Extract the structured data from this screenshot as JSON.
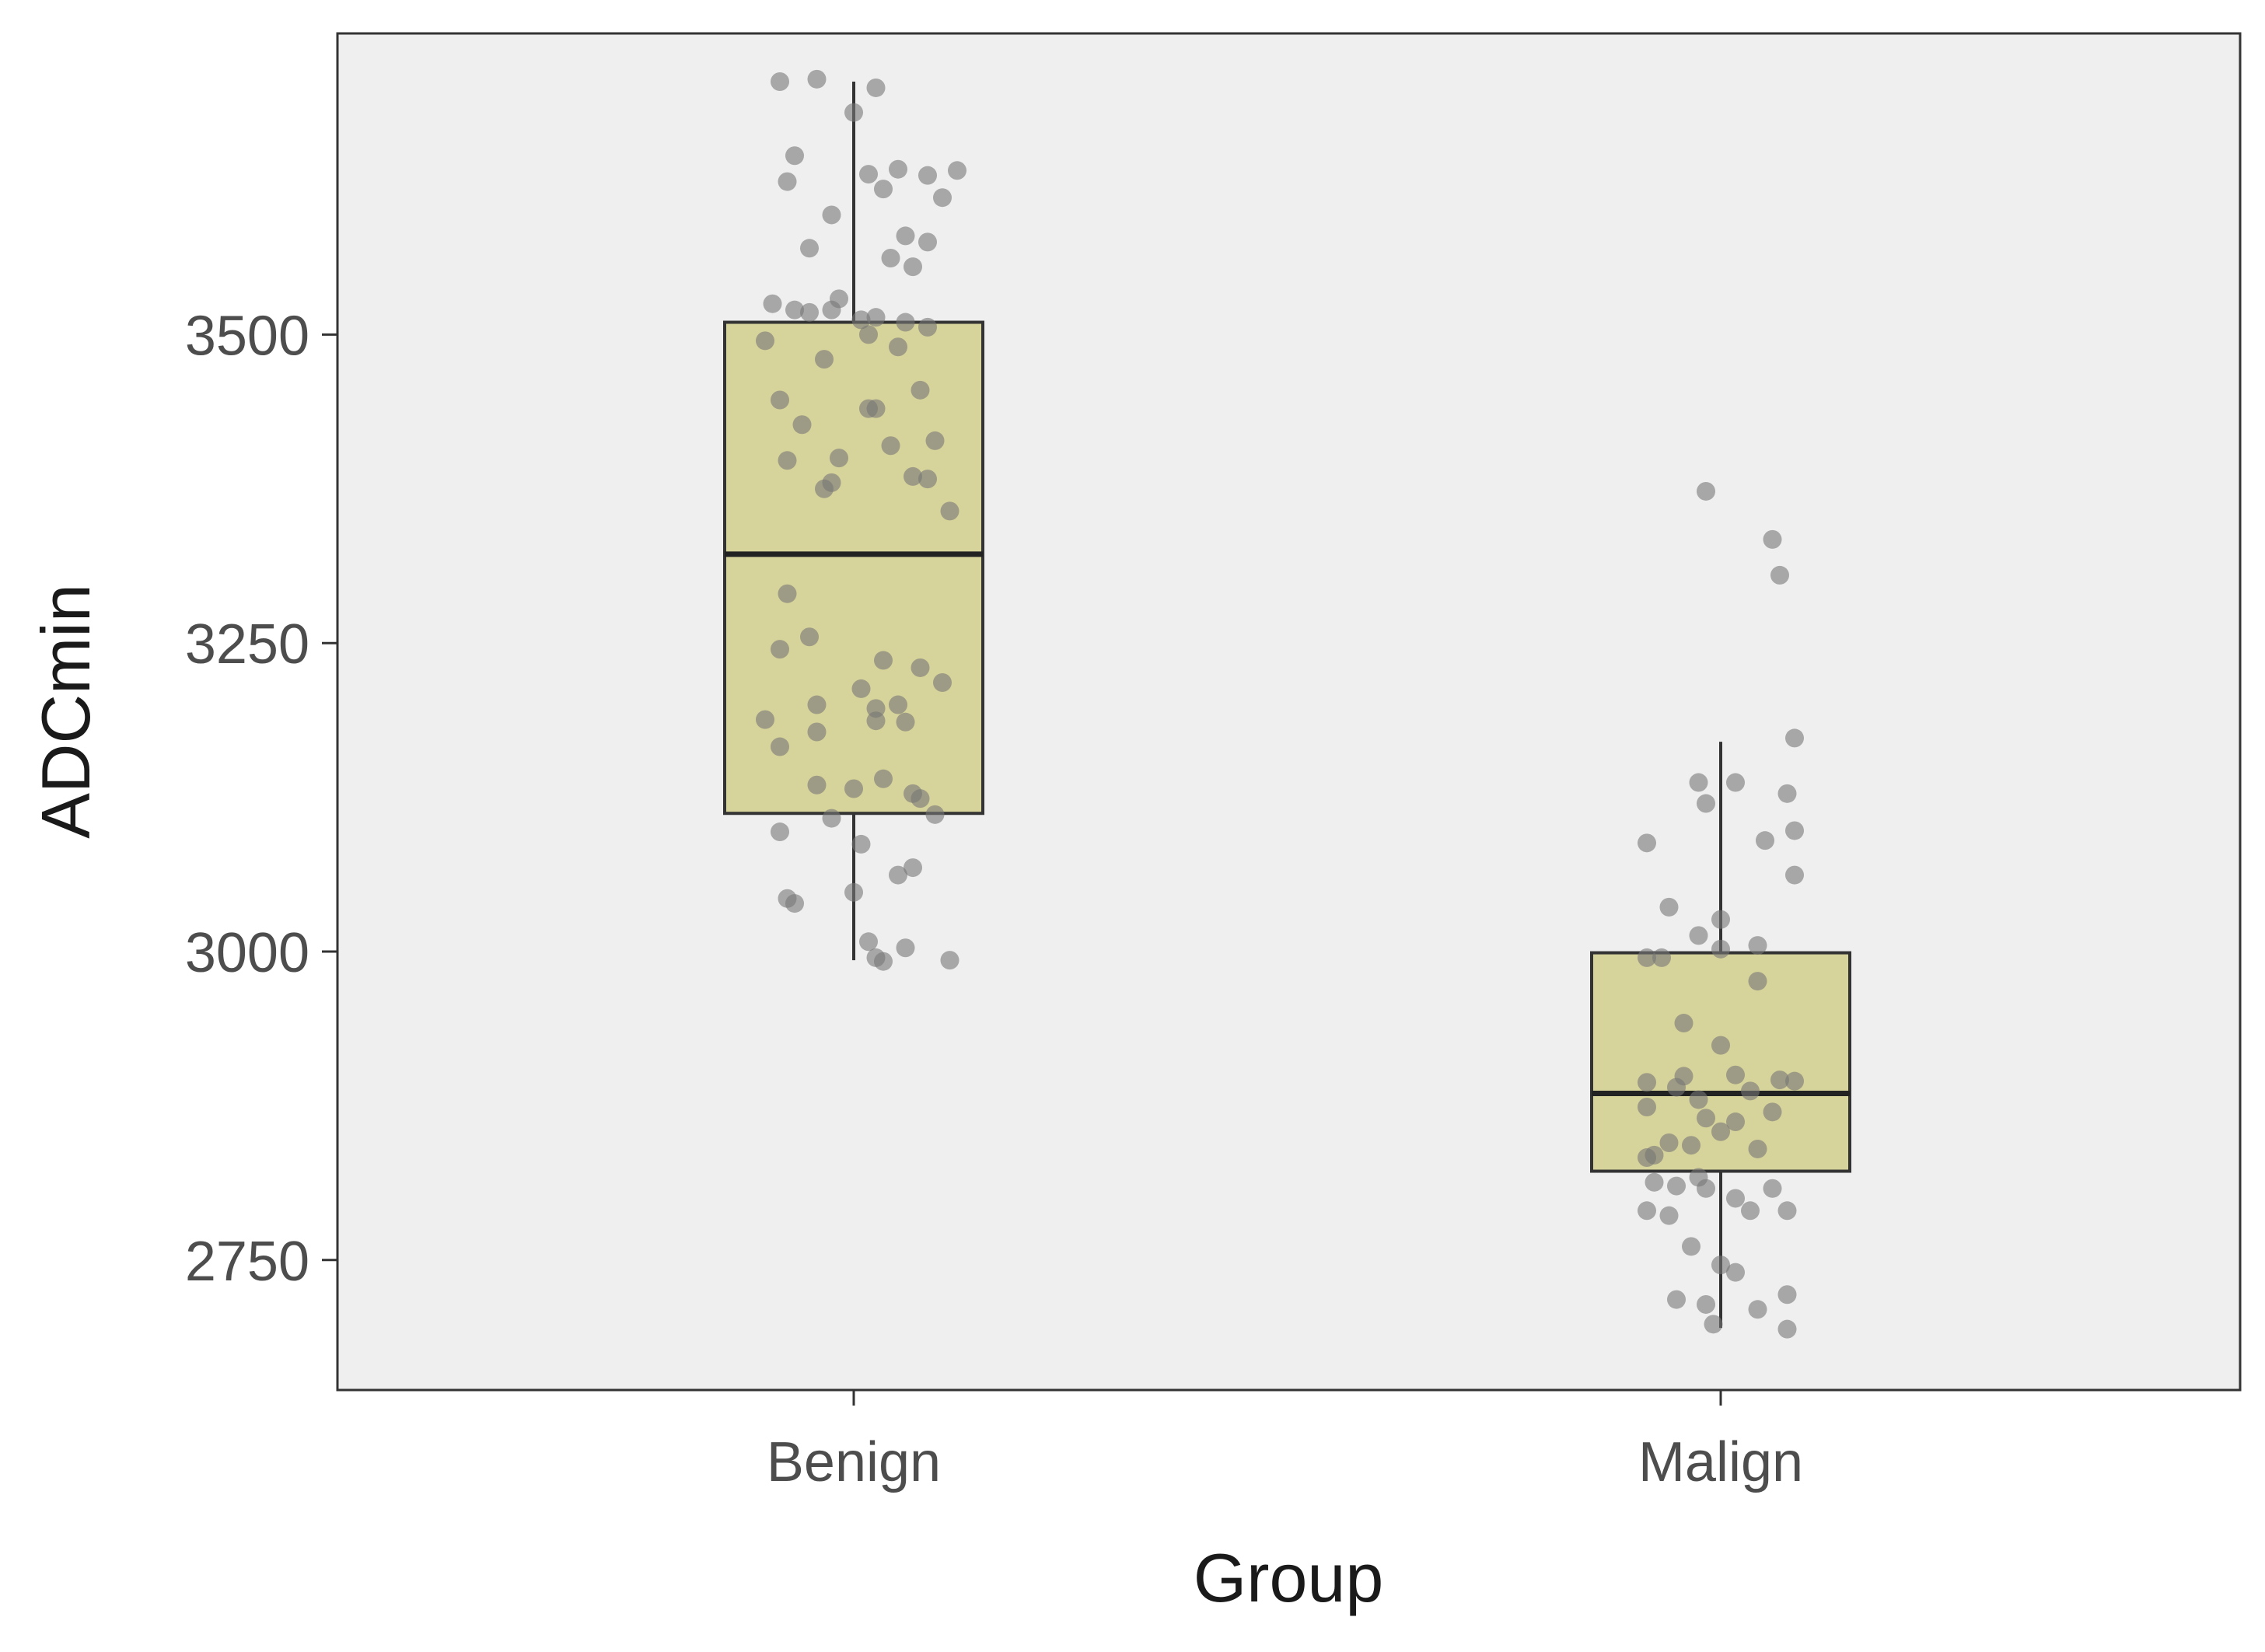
{
  "chart_data": {
    "type": "boxplot",
    "title": "",
    "xlabel": "Group",
    "ylabel": "ADCmin",
    "ylim": [
      2655,
      3750
    ],
    "y_ticks": [
      2750,
      3000,
      3250,
      3500
    ],
    "y_tick_labels": [
      "2750",
      "3000",
      "3250",
      "3500"
    ],
    "categories": [
      "Benign",
      "Malign"
    ],
    "grid": false,
    "colors": {
      "panel": "#efefef",
      "box_fill": "#d6d39b",
      "box_stroke": "#333333",
      "point": "#777777",
      "axis": "#333333"
    },
    "boxes": [
      {
        "group": "Benign",
        "whisker_low": 2993,
        "q1": 3112,
        "median": 3322,
        "q3": 3510,
        "whisker_high": 3705
      },
      {
        "group": "Malign",
        "whisker_low": 2695,
        "q1": 2822,
        "median": 2885,
        "q3": 2999,
        "whisker_high": 3170
      }
    ],
    "points": [
      {
        "group": "Benign",
        "jitter": [
          -0.1,
          -0.05,
          0,
          0.03,
          0.06,
          0.1,
          0.12,
          -0.08,
          -0.09,
          0.02,
          0.04,
          -0.03,
          0.07,
          0.14,
          -0.06,
          0.1,
          0.05,
          0.08,
          -0.11,
          -0.08,
          -0.03,
          -0.06,
          0.01,
          0.03,
          0.07,
          0.1,
          -0.02,
          0.06,
          -0.04,
          -0.12,
          0.02,
          0.09,
          -0.1,
          -0.07,
          0.02,
          -0.09,
          0.03,
          0.05,
          0.11,
          0.08,
          -0.02,
          0.1,
          -0.03,
          0.13,
          -0.04,
          -0.09,
          -0.06,
          -0.1,
          0.04,
          0.09,
          0.12,
          0.01,
          -0.05,
          0.06,
          0.03,
          0.07,
          -0.12,
          -0.05,
          0.03,
          -0.1,
          0.04,
          -0.05,
          0.0,
          0.08,
          0.09,
          0.11,
          -0.03,
          -0.1,
          0.01,
          0.06,
          0.08,
          0.0,
          -0.09,
          -0.08,
          0.02,
          0.07,
          0.03,
          0.04,
          0.13
        ],
        "values": [
          3705,
          3707,
          3680,
          3700,
          3634,
          3629,
          3611,
          3645,
          3624,
          3630,
          3618,
          3597,
          3580,
          3633,
          3570,
          3575,
          3562,
          3555,
          3525,
          3520,
          3520,
          3518,
          3512,
          3514,
          3510,
          3506,
          3529,
          3490,
          3480,
          3495,
          3500,
          3455,
          3447,
          3427,
          3440,
          3398,
          3440,
          3410,
          3414,
          3385,
          3400,
          3383,
          3380,
          3357,
          3375,
          3290,
          3255,
          3245,
          3236,
          3230,
          3218,
          3213,
          3200,
          3200,
          3197,
          3186,
          3188,
          3178,
          3187,
          3166,
          3140,
          3135,
          3132,
          3128,
          3124,
          3111,
          3108,
          3097,
          3087,
          3062,
          3068,
          3048,
          3043,
          3039,
          3008,
          3003,
          2995,
          2992,
          2993
        ]
      },
      {
        "group": "Malign",
        "jitter": [
          -0.02,
          0.08,
          0.07,
          0.1,
          -0.03,
          -0.02,
          0.02,
          0.09,
          0.1,
          -0.1,
          0.06,
          0.1,
          -0.07,
          0.0,
          -0.03,
          0.05,
          0.0,
          -0.08,
          -0.1,
          0.05,
          -0.05,
          0.0,
          0.02,
          -0.05,
          0.08,
          -0.1,
          -0.06,
          0.04,
          -0.03,
          0.1,
          -0.1,
          0.07,
          -0.02,
          0.02,
          0.0,
          -0.07,
          -0.04,
          0.05,
          -0.09,
          -0.1,
          -0.03,
          -0.09,
          -0.06,
          -0.02,
          0.07,
          0.02,
          -0.1,
          0.09,
          -0.07,
          0.04,
          -0.04,
          0.0,
          0.02,
          0.09,
          -0.06,
          -0.02,
          0.05,
          -0.01,
          0.09
        ],
        "values": [
          3373,
          3305,
          3334,
          3173,
          3137,
          3120,
          3137,
          3128,
          3098,
          3088,
          3090,
          3062,
          3036,
          3026,
          3013,
          3005,
          3002,
          2995,
          2995,
          2976,
          2942,
          2924,
          2900,
          2899,
          2896,
          2894,
          2890,
          2887,
          2880,
          2895,
          2874,
          2870,
          2865,
          2862,
          2854,
          2845,
          2843,
          2840,
          2835,
          2833,
          2817,
          2813,
          2810,
          2808,
          2808,
          2800,
          2790,
          2790,
          2786,
          2790,
          2761,
          2746,
          2740,
          2722,
          2718,
          2714,
          2710,
          2698,
          2694
        ]
      }
    ]
  }
}
